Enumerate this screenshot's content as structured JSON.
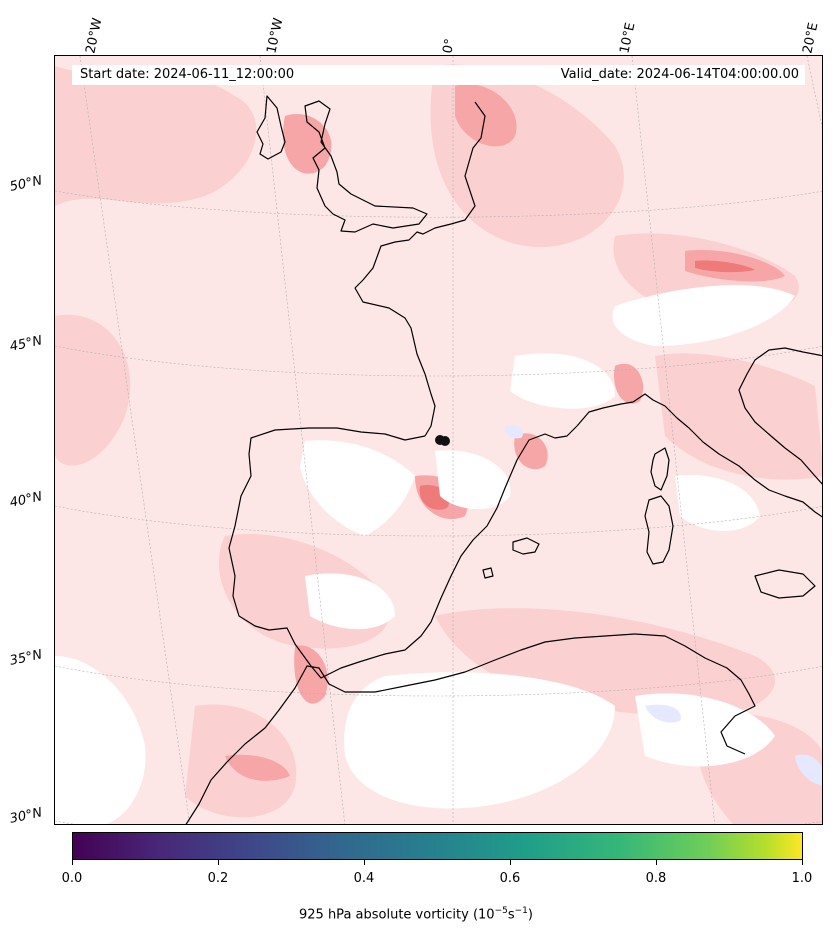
{
  "map": {
    "start_date": "Start date: 2024-06-11_12:00:00",
    "valid_date": "Valid_date: 2024-06-14T04:00:00.00",
    "lon_labels": [
      "20°W",
      "10°W",
      "0°",
      "10°E",
      "20°E"
    ],
    "lat_labels": [
      "50°N",
      "45°N",
      "40°N",
      "35°N",
      "30°N"
    ],
    "colors": {
      "base_fill": "#fde6e6",
      "light_fill": "#fbd0d0",
      "medium_fill": "#f6a6a6",
      "strong_fill": "#ee7a7a",
      "negative_fill": "#e6e8ff",
      "coast": "#000000",
      "grid": "#b0b0b0"
    }
  },
  "colorbar": {
    "ticks": [
      "0.0",
      "0.2",
      "0.4",
      "0.6",
      "0.8",
      "1.0"
    ],
    "label_main": "925 hPa absolute vorticity (10",
    "label_exp1": "−5",
    "label_mid": "s",
    "label_exp2": "−1",
    "label_end": ")",
    "colormap": "viridis"
  }
}
